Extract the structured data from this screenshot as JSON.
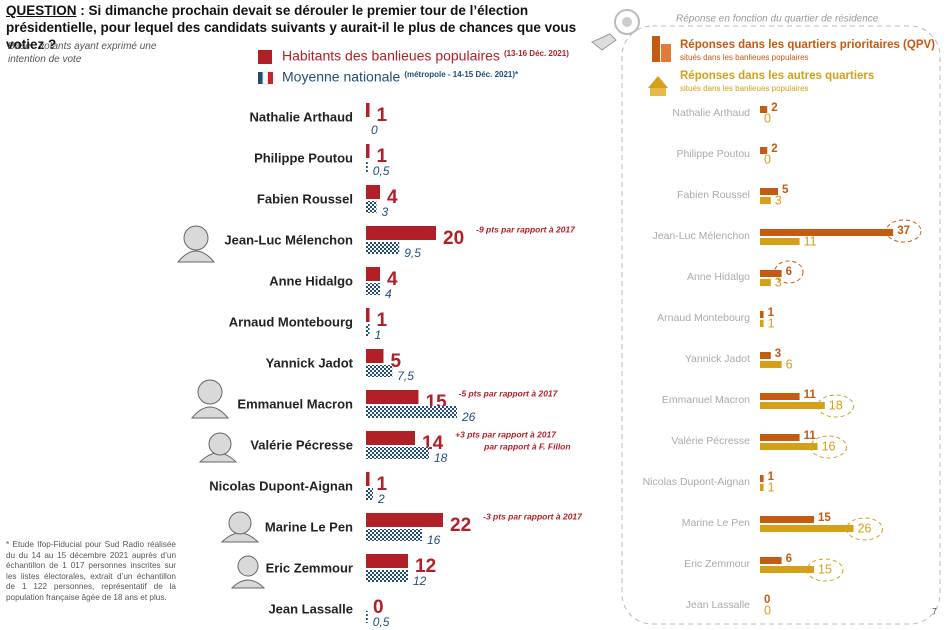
{
  "question": {
    "label": "QUESTION",
    "text": " : Si dimanche prochain devait se dérouler le premier tour de l’élection présidentielle, pour lequel des candidats suivants y aurait-il le plus de chances que vous votiez ?"
  },
  "base": "Base : votants ayant exprimé une intention de vote",
  "footnote": "* Etude Ifop-Fiducial pour Sud Radio réalisée du du 14 au 15 décembre 2021 auprès d’un échantillon de 1 017 personnes inscrites sur les listes électorales, extrait d’un échantillon de 1 122 personnes, représentatif de la population française âgée de 18 ans et plus.",
  "page_number": 7,
  "chart_data": [
    {
      "type": "bar",
      "orientation": "horizontal",
      "categories": [
        "Nathalie Arthaud",
        "Philippe Poutou",
        "Fabien Roussel",
        "Jean-Luc Mélenchon",
        "Anne Hidalgo",
        "Arnaud Montebourg",
        "Yannick Jadot",
        "Emmanuel Macron",
        "Valérie Pécresse",
        "Nicolas Dupont-Aignan",
        "Marine Le Pen",
        "Eric Zemmour",
        "Jean Lassalle"
      ],
      "series": [
        {
          "name": "Habitants des banlieues populaires",
          "name_note": "(13-16 Déc. 2021)",
          "color": "#b22027",
          "values": [
            1,
            1,
            4,
            20,
            4,
            1,
            5,
            15,
            14,
            1,
            22,
            12,
            0
          ]
        },
        {
          "name": "Moyenne nationale",
          "name_note": "(métropole - 14-15 Déc. 2021)*",
          "color": "#1f4e79",
          "pattern": "checker",
          "values": [
            0,
            0.5,
            3,
            9.5,
            4,
            1,
            7.5,
            26,
            18,
            2,
            16,
            12,
            0.5
          ],
          "value_labels": [
            "0",
            "0,5",
            "3",
            "9,5",
            "4",
            "1",
            "7,5",
            "26",
            "18",
            "2",
            "16",
            "12",
            "0,5"
          ]
        }
      ],
      "annotations": [
        {
          "category": "Jean-Luc Mélenchon",
          "lines": [
            "-9 pts par rapport à 2017"
          ]
        },
        {
          "category": "Emmanuel Macron",
          "lines": [
            "-5 pts par rapport à 2017"
          ]
        },
        {
          "category": "Valérie Pécresse",
          "lines": [
            "+3 pts par rapport à 2017",
            "par rapport à F. Fillon"
          ]
        },
        {
          "category": "Marine Le Pen",
          "lines": [
            "-3 pts par rapport à 2017"
          ]
        }
      ]
    },
    {
      "type": "bar",
      "orientation": "horizontal",
      "title": "Réponse en fonction du quartier de résidence",
      "categories": [
        "Nathalie Arthaud",
        "Philippe Poutou",
        "Fabien Roussel",
        "Jean-Luc Mélenchon",
        "Anne Hidalgo",
        "Arnaud Montebourg",
        "Yannick Jadot",
        "Emmanuel Macron",
        "Valérie Pécresse",
        "Nicolas Dupont-Aignan",
        "Marine Le Pen",
        "Eric Zemmour",
        "Jean Lassalle"
      ],
      "series": [
        {
          "name": "Réponses dans les quartiers prioritaires (QPV)",
          "subtitle": "situés dans les banlieues populaires",
          "color": "#c55a11",
          "values": [
            2,
            2,
            5,
            37,
            6,
            1,
            3,
            11,
            11,
            1,
            15,
            6,
            0
          ],
          "circled": [
            false,
            false,
            false,
            true,
            true,
            false,
            false,
            false,
            false,
            false,
            false,
            false,
            false
          ]
        },
        {
          "name": "Réponses dans les autres quartiers",
          "subtitle": "situés dans les banlieues populaires",
          "color": "#d4a017",
          "values": [
            0,
            0,
            3,
            11,
            3,
            1,
            6,
            18,
            16,
            1,
            26,
            15,
            0
          ],
          "circled": [
            false,
            false,
            false,
            false,
            false,
            false,
            false,
            true,
            true,
            false,
            true,
            true,
            false
          ]
        }
      ]
    }
  ]
}
